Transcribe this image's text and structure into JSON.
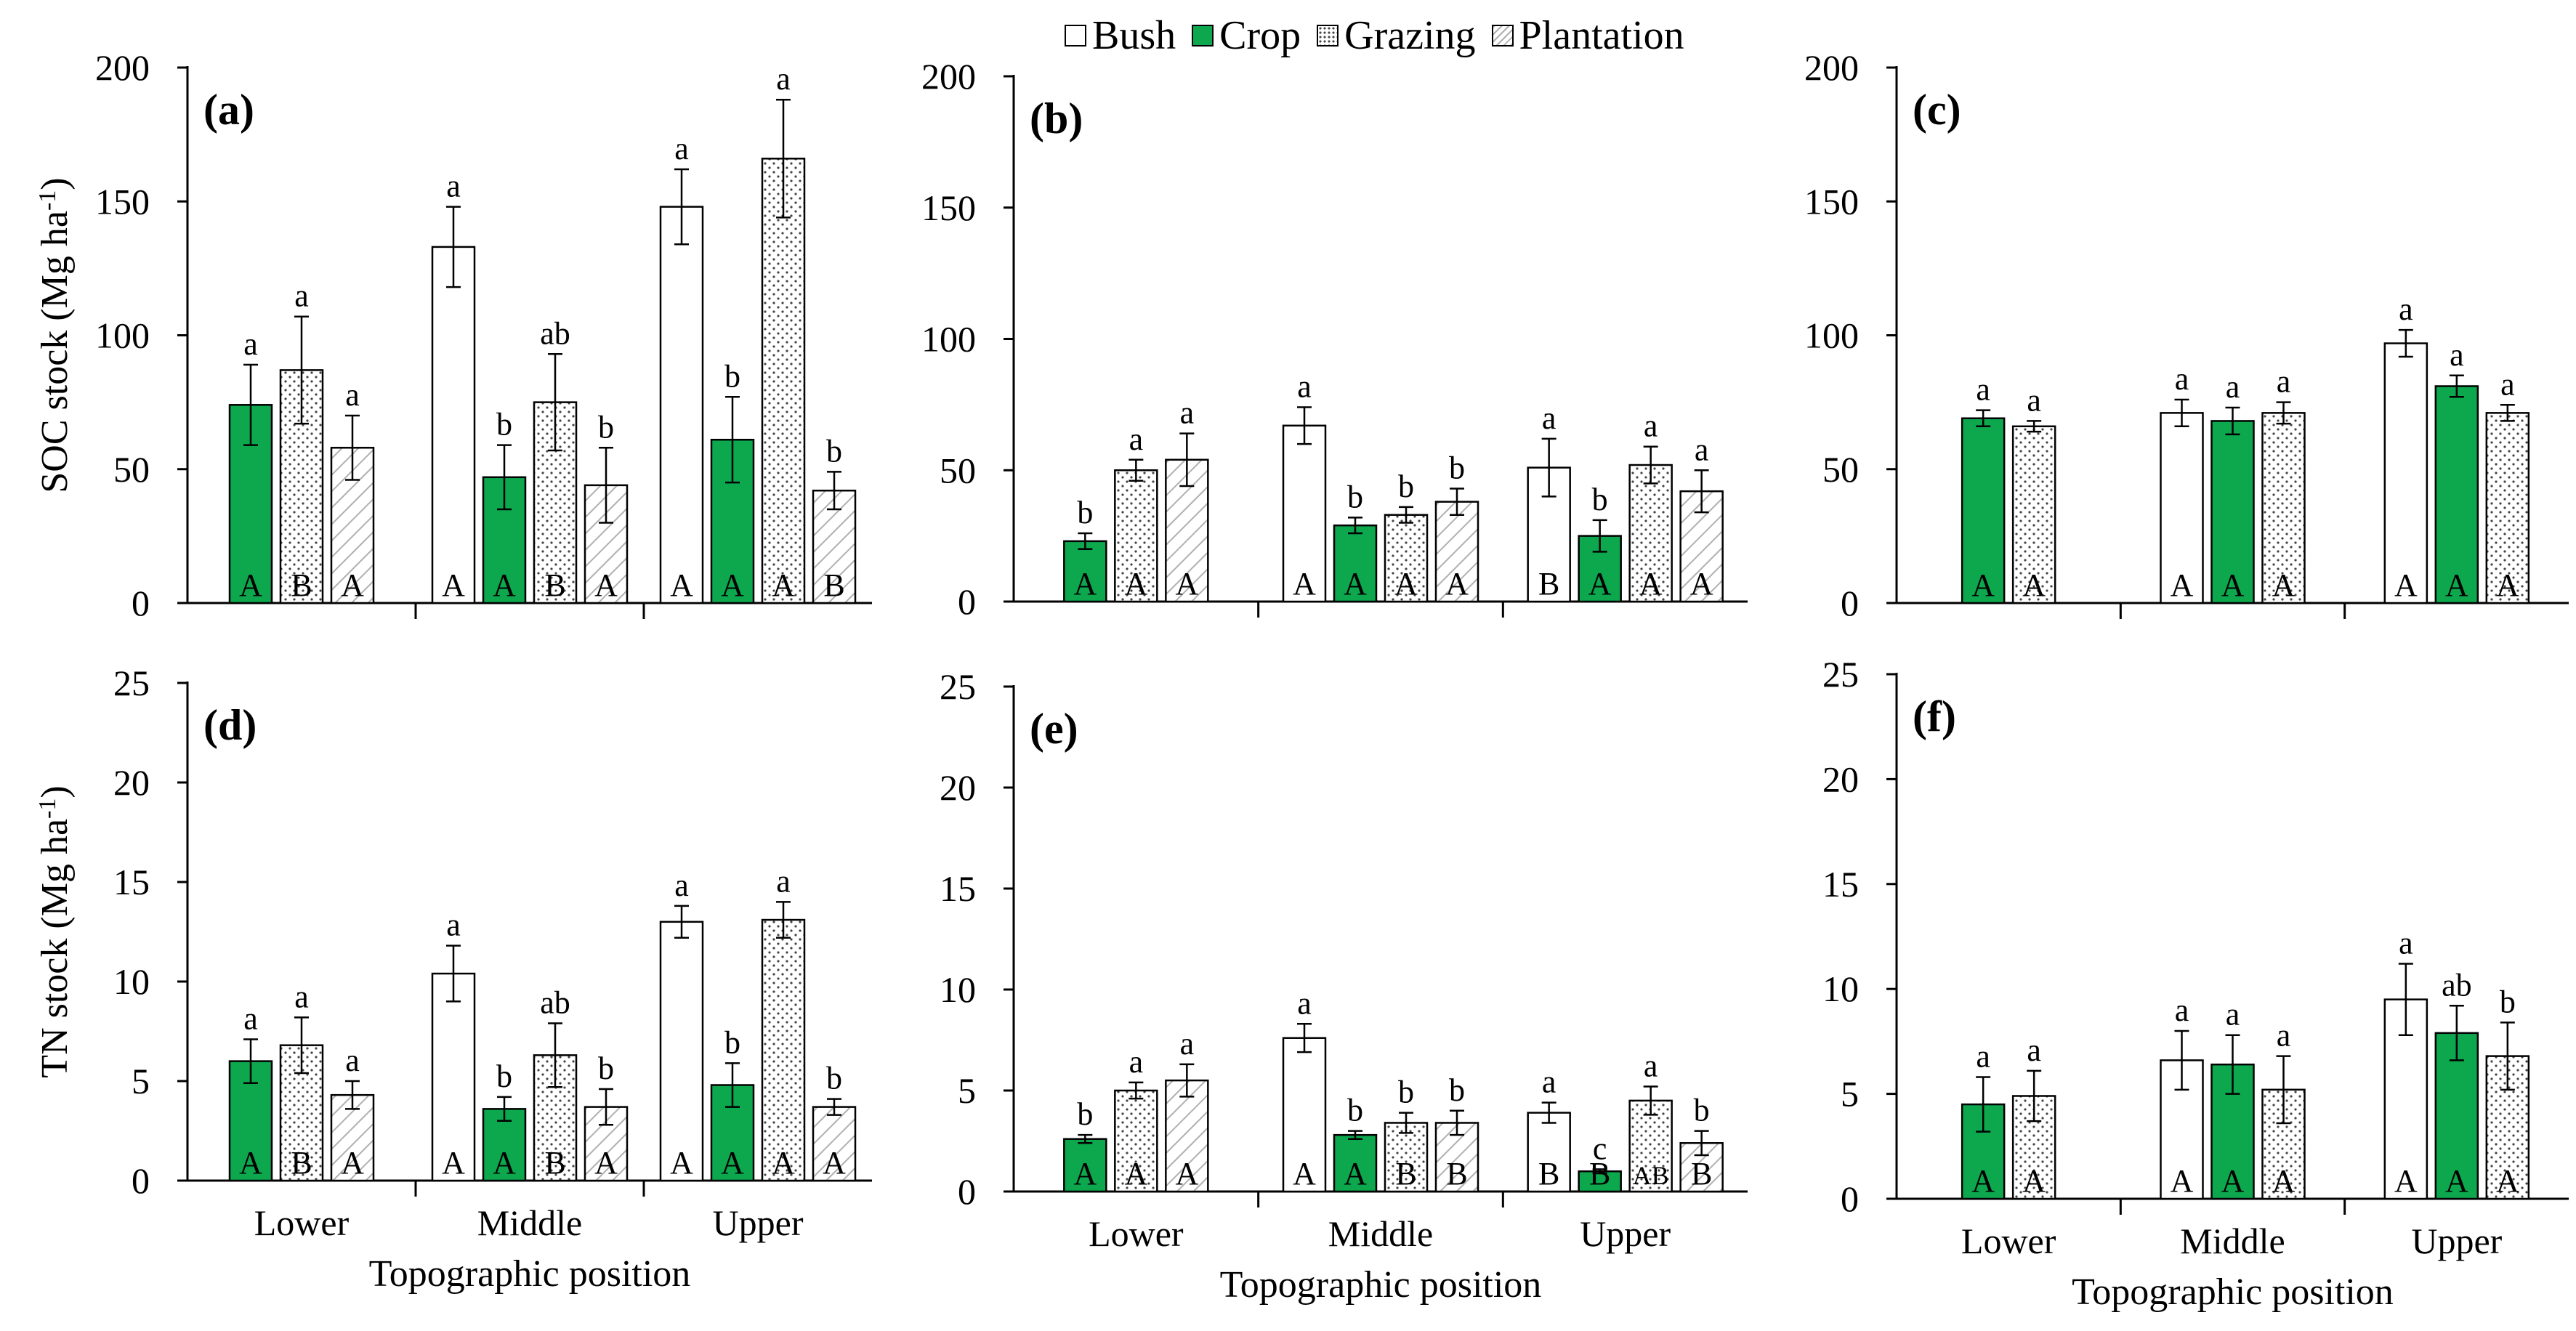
{
  "legend": {
    "items": [
      {
        "label": "Bush",
        "pattern": "bush"
      },
      {
        "label": "Crop",
        "pattern": "crop"
      },
      {
        "label": "Grazing",
        "pattern": "grazing"
      },
      {
        "label": "Plantation",
        "pattern": "plantation"
      }
    ]
  },
  "colors": {
    "crop": "#0da84e",
    "bush": "#ffffff",
    "axis": "#000000",
    "hatch": "#b0b0b0"
  },
  "chart_data": [
    {
      "type": "bar",
      "panel": "(a)",
      "ylabel": "SOC stock (Mg ha-1)",
      "xlabel": "",
      "ylim": [
        0,
        200
      ],
      "yticks": [
        0,
        50,
        100,
        150,
        200
      ],
      "categories": [
        "Lower",
        "Middle",
        "Upper"
      ],
      "show_xticklabels": false,
      "groups": [
        {
          "category": "Lower",
          "bars": [
            {
              "series": "Crop",
              "value": 74,
              "err": 15,
              "sig": "a",
              "topo": "A"
            },
            {
              "series": "Grazing",
              "value": 87,
              "err": 20,
              "sig": "a",
              "topo": "B"
            },
            {
              "series": "Plantation",
              "value": 58,
              "err": 12,
              "sig": "a",
              "topo": "A"
            }
          ]
        },
        {
          "category": "Middle",
          "bars": [
            {
              "series": "Bush",
              "value": 133,
              "err": 15,
              "sig": "a",
              "topo": "A"
            },
            {
              "series": "Crop",
              "value": 47,
              "err": 12,
              "sig": "b",
              "topo": "A"
            },
            {
              "series": "Grazing",
              "value": 75,
              "err": 18,
              "sig": "ab",
              "topo": "B"
            },
            {
              "series": "Plantation",
              "value": 44,
              "err": 14,
              "sig": "b",
              "topo": "A"
            }
          ]
        },
        {
          "category": "Upper",
          "bars": [
            {
              "series": "Bush",
              "value": 148,
              "err": 14,
              "sig": "a",
              "topo": "A"
            },
            {
              "series": "Crop",
              "value": 61,
              "err": 16,
              "sig": "b",
              "topo": "A"
            },
            {
              "series": "Grazing",
              "value": 166,
              "err": 22,
              "sig": "a",
              "topo": "A"
            },
            {
              "series": "Plantation",
              "value": 42,
              "err": 7,
              "sig": "b",
              "topo": "B"
            }
          ]
        }
      ]
    },
    {
      "type": "bar",
      "panel": "(b)",
      "ylabel": "",
      "xlabel": "",
      "ylim": [
        0,
        200
      ],
      "yticks": [
        0,
        50,
        100,
        150,
        200
      ],
      "categories": [
        "Lower",
        "Middle",
        "Upper"
      ],
      "show_xticklabels": false,
      "groups": [
        {
          "category": "Lower",
          "bars": [
            {
              "series": "Crop",
              "value": 23,
              "err": 3,
              "sig": "b",
              "topo": "A"
            },
            {
              "series": "Grazing",
              "value": 50,
              "err": 4,
              "sig": "a",
              "topo": "A"
            },
            {
              "series": "Plantation",
              "value": 54,
              "err": 10,
              "sig": "a",
              "topo": "A"
            }
          ]
        },
        {
          "category": "Middle",
          "bars": [
            {
              "series": "Bush",
              "value": 67,
              "err": 7,
              "sig": "a",
              "topo": "A"
            },
            {
              "series": "Crop",
              "value": 29,
              "err": 3,
              "sig": "b",
              "topo": "A"
            },
            {
              "series": "Grazing",
              "value": 33,
              "err": 3,
              "sig": "b",
              "topo": "A"
            },
            {
              "series": "Plantation",
              "value": 38,
              "err": 5,
              "sig": "b",
              "topo": "A"
            }
          ]
        },
        {
          "category": "Upper",
          "bars": [
            {
              "series": "Bush",
              "value": 51,
              "err": 11,
              "sig": "a",
              "topo": "B"
            },
            {
              "series": "Crop",
              "value": 25,
              "err": 6,
              "sig": "b",
              "topo": "A"
            },
            {
              "series": "Grazing",
              "value": 52,
              "err": 7,
              "sig": "a",
              "topo": "A"
            },
            {
              "series": "Plantation",
              "value": 42,
              "err": 8,
              "sig": "a",
              "topo": "A"
            }
          ]
        }
      ]
    },
    {
      "type": "bar",
      "panel": "(c)",
      "ylabel": "",
      "xlabel": "",
      "ylim": [
        0,
        200
      ],
      "yticks": [
        0,
        50,
        100,
        150,
        200
      ],
      "categories": [
        "Lower",
        "Middle",
        "Upper"
      ],
      "show_xticklabels": false,
      "groups": [
        {
          "category": "Lower",
          "bars": [
            {
              "series": "Crop",
              "value": 69,
              "err": 3,
              "sig": "a",
              "topo": "A"
            },
            {
              "series": "Grazing",
              "value": 66,
              "err": 2,
              "sig": "a",
              "topo": "A"
            }
          ]
        },
        {
          "category": "Middle",
          "bars": [
            {
              "series": "Bush",
              "value": 71,
              "err": 5,
              "sig": "a",
              "topo": "A"
            },
            {
              "series": "Crop",
              "value": 68,
              "err": 5,
              "sig": "a",
              "topo": "A"
            },
            {
              "series": "Grazing",
              "value": 71,
              "err": 4,
              "sig": "a",
              "topo": "A"
            }
          ]
        },
        {
          "category": "Upper",
          "bars": [
            {
              "series": "Bush",
              "value": 97,
              "err": 5,
              "sig": "a",
              "topo": "A"
            },
            {
              "series": "Crop",
              "value": 81,
              "err": 4,
              "sig": "a",
              "topo": "A"
            },
            {
              "series": "Grazing",
              "value": 71,
              "err": 3,
              "sig": "a",
              "topo": "A"
            }
          ]
        }
      ]
    },
    {
      "type": "bar",
      "panel": "(d)",
      "ylabel": "TN stock (Mg ha-1)",
      "xlabel": "Topographic position",
      "ylim": [
        0,
        25
      ],
      "yticks": [
        0,
        5,
        10,
        15,
        20,
        25
      ],
      "categories": [
        "Lower",
        "Middle",
        "Upper"
      ],
      "show_xticklabels": true,
      "groups": [
        {
          "category": "Lower",
          "bars": [
            {
              "series": "Crop",
              "value": 6.0,
              "err": 1.1,
              "sig": "a",
              "topo": "A"
            },
            {
              "series": "Grazing",
              "value": 6.8,
              "err": 1.4,
              "sig": "a",
              "topo": "B"
            },
            {
              "series": "Plantation",
              "value": 4.3,
              "err": 0.7,
              "sig": "a",
              "topo": "A"
            }
          ]
        },
        {
          "category": "Middle",
          "bars": [
            {
              "series": "Bush",
              "value": 10.4,
              "err": 1.4,
              "sig": "a",
              "topo": "A"
            },
            {
              "series": "Crop",
              "value": 3.6,
              "err": 0.6,
              "sig": "b",
              "topo": "A"
            },
            {
              "series": "Grazing",
              "value": 6.3,
              "err": 1.6,
              "sig": "ab",
              "topo": "B"
            },
            {
              "series": "Plantation",
              "value": 3.7,
              "err": 0.9,
              "sig": "b",
              "topo": "A"
            }
          ]
        },
        {
          "category": "Upper",
          "bars": [
            {
              "series": "Bush",
              "value": 13.0,
              "err": 0.8,
              "sig": "a",
              "topo": "A"
            },
            {
              "series": "Crop",
              "value": 4.8,
              "err": 1.1,
              "sig": "b",
              "topo": "A"
            },
            {
              "series": "Grazing",
              "value": 13.1,
              "err": 0.9,
              "sig": "a",
              "topo": "A"
            },
            {
              "series": "Plantation",
              "value": 3.7,
              "err": 0.4,
              "sig": "b",
              "topo": "A"
            }
          ]
        }
      ]
    },
    {
      "type": "bar",
      "panel": "(e)",
      "ylabel": "",
      "xlabel": "Topographic position",
      "ylim": [
        0,
        25
      ],
      "yticks": [
        0,
        5,
        10,
        15,
        20,
        25
      ],
      "categories": [
        "Lower",
        "Middle",
        "Upper"
      ],
      "show_xticklabels": true,
      "groups": [
        {
          "category": "Lower",
          "bars": [
            {
              "series": "Crop",
              "value": 2.6,
              "err": 0.2,
              "sig": "b",
              "topo": "A"
            },
            {
              "series": "Grazing",
              "value": 5.0,
              "err": 0.4,
              "sig": "a",
              "topo": "A"
            },
            {
              "series": "Plantation",
              "value": 5.5,
              "err": 0.8,
              "sig": "a",
              "topo": "A"
            }
          ]
        },
        {
          "category": "Middle",
          "bars": [
            {
              "series": "Bush",
              "value": 7.6,
              "err": 0.7,
              "sig": "a",
              "topo": "A"
            },
            {
              "series": "Crop",
              "value": 2.8,
              "err": 0.2,
              "sig": "b",
              "topo": "A"
            },
            {
              "series": "Grazing",
              "value": 3.4,
              "err": 0.5,
              "sig": "b",
              "topo": "B"
            },
            {
              "series": "Plantation",
              "value": 3.4,
              "err": 0.6,
              "sig": "b",
              "topo": "B"
            }
          ]
        },
        {
          "category": "Upper",
          "bars": [
            {
              "series": "Bush",
              "value": 3.9,
              "err": 0.5,
              "sig": "a",
              "topo": "B"
            },
            {
              "series": "Crop",
              "value": 1.0,
              "err": 0.1,
              "sig": "c",
              "topo": "B"
            },
            {
              "series": "Grazing",
              "value": 4.5,
              "err": 0.7,
              "sig": "a",
              "topo": "AB"
            },
            {
              "series": "Plantation",
              "value": 2.4,
              "err": 0.6,
              "sig": "b",
              "topo": "B"
            }
          ]
        }
      ]
    },
    {
      "type": "bar",
      "panel": "(f)",
      "ylabel": "",
      "xlabel": "Topographic position",
      "ylim": [
        0,
        25
      ],
      "yticks": [
        0,
        5,
        10,
        15,
        20,
        25
      ],
      "categories": [
        "Lower",
        "Middle",
        "Upper"
      ],
      "show_xticklabels": true,
      "groups": [
        {
          "category": "Lower",
          "bars": [
            {
              "series": "Crop",
              "value": 4.5,
              "err": 1.3,
              "sig": "a",
              "topo": "A"
            },
            {
              "series": "Grazing",
              "value": 4.9,
              "err": 1.2,
              "sig": "a",
              "topo": "A"
            }
          ]
        },
        {
          "category": "Middle",
          "bars": [
            {
              "series": "Bush",
              "value": 6.6,
              "err": 1.4,
              "sig": "a",
              "topo": "A"
            },
            {
              "series": "Crop",
              "value": 6.4,
              "err": 1.4,
              "sig": "a",
              "topo": "A"
            },
            {
              "series": "Grazing",
              "value": 5.2,
              "err": 1.6,
              "sig": "a",
              "topo": "A"
            }
          ]
        },
        {
          "category": "Upper",
          "bars": [
            {
              "series": "Bush",
              "value": 9.5,
              "err": 1.7,
              "sig": "a",
              "topo": "A"
            },
            {
              "series": "Crop",
              "value": 7.9,
              "err": 1.3,
              "sig": "ab",
              "topo": "A"
            },
            {
              "series": "Grazing",
              "value": 6.8,
              "err": 1.6,
              "sig": "b",
              "topo": "A"
            }
          ]
        }
      ]
    }
  ]
}
